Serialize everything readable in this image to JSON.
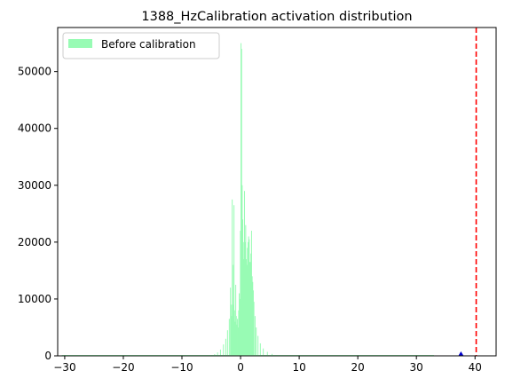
{
  "chart_data": {
    "type": "histogram",
    "title": "1388_HzCalibration activation distribution",
    "xlabel": "",
    "ylabel": "",
    "xlim": [
      -31.2,
      43.6
    ],
    "ylim": [
      0,
      57750
    ],
    "x_ticks": [
      -30,
      -20,
      -10,
      0,
      10,
      20,
      30,
      40
    ],
    "y_ticks": [
      0,
      10000,
      20000,
      30000,
      40000,
      50000
    ],
    "grid": false,
    "legend": {
      "placement": "top-left",
      "entries": [
        "Before calibration"
      ]
    },
    "series": [
      {
        "name": "Before calibration",
        "color": "#98fbb4",
        "bin_width": 0.1,
        "bins": [
          [
            -5.0,
            150
          ],
          [
            -4.5,
            300
          ],
          [
            -4.0,
            600
          ],
          [
            -3.5,
            1100
          ],
          [
            -3.0,
            2000
          ],
          [
            -2.6,
            3000
          ],
          [
            -2.3,
            4500
          ],
          [
            -2.0,
            6500
          ],
          [
            -1.8,
            12000
          ],
          [
            -1.7,
            9000
          ],
          [
            -1.6,
            7000
          ],
          [
            -1.5,
            27500
          ],
          [
            -1.4,
            9000
          ],
          [
            -1.3,
            16000
          ],
          [
            -1.2,
            26500
          ],
          [
            -1.1,
            8000
          ],
          [
            -1.0,
            6000
          ],
          [
            -0.9,
            12500
          ],
          [
            -0.8,
            7000
          ],
          [
            -0.7,
            5500
          ],
          [
            -0.6,
            6500
          ],
          [
            -0.5,
            5000
          ],
          [
            -0.4,
            8000
          ],
          [
            -0.3,
            11000
          ],
          [
            -0.2,
            10000
          ],
          [
            -0.1,
            22000
          ],
          [
            0.0,
            55000
          ],
          [
            0.1,
            54000
          ],
          [
            0.2,
            30000
          ],
          [
            0.3,
            24000
          ],
          [
            0.4,
            20000
          ],
          [
            0.5,
            17000
          ],
          [
            0.6,
            29000
          ],
          [
            0.7,
            20000
          ],
          [
            0.8,
            23000
          ],
          [
            0.9,
            17000
          ],
          [
            1.0,
            16000
          ],
          [
            1.1,
            19000
          ],
          [
            1.2,
            20000
          ],
          [
            1.3,
            21000
          ],
          [
            1.4,
            20500
          ],
          [
            1.5,
            16500
          ],
          [
            1.6,
            16500
          ],
          [
            1.7,
            18000
          ],
          [
            1.8,
            22000
          ],
          [
            1.9,
            14000
          ],
          [
            2.0,
            13000
          ],
          [
            2.1,
            11500
          ],
          [
            2.2,
            9500
          ],
          [
            2.4,
            7000
          ],
          [
            2.6,
            5000
          ],
          [
            2.9,
            3500
          ],
          [
            3.3,
            2200
          ],
          [
            3.8,
            1300
          ],
          [
            4.5,
            700
          ],
          [
            5.3,
            350
          ],
          [
            6.0,
            150
          ]
        ],
        "floor": {
          "from": -30.5,
          "to": 33.0,
          "value": 150
        }
      }
    ],
    "annotations": [
      {
        "type": "vline",
        "x": 40.2,
        "color": "#ff0000",
        "style": "dashed"
      },
      {
        "type": "marker",
        "shape": "triangle",
        "x": 37.6,
        "y": 0,
        "color": "#0000cc"
      }
    ]
  }
}
